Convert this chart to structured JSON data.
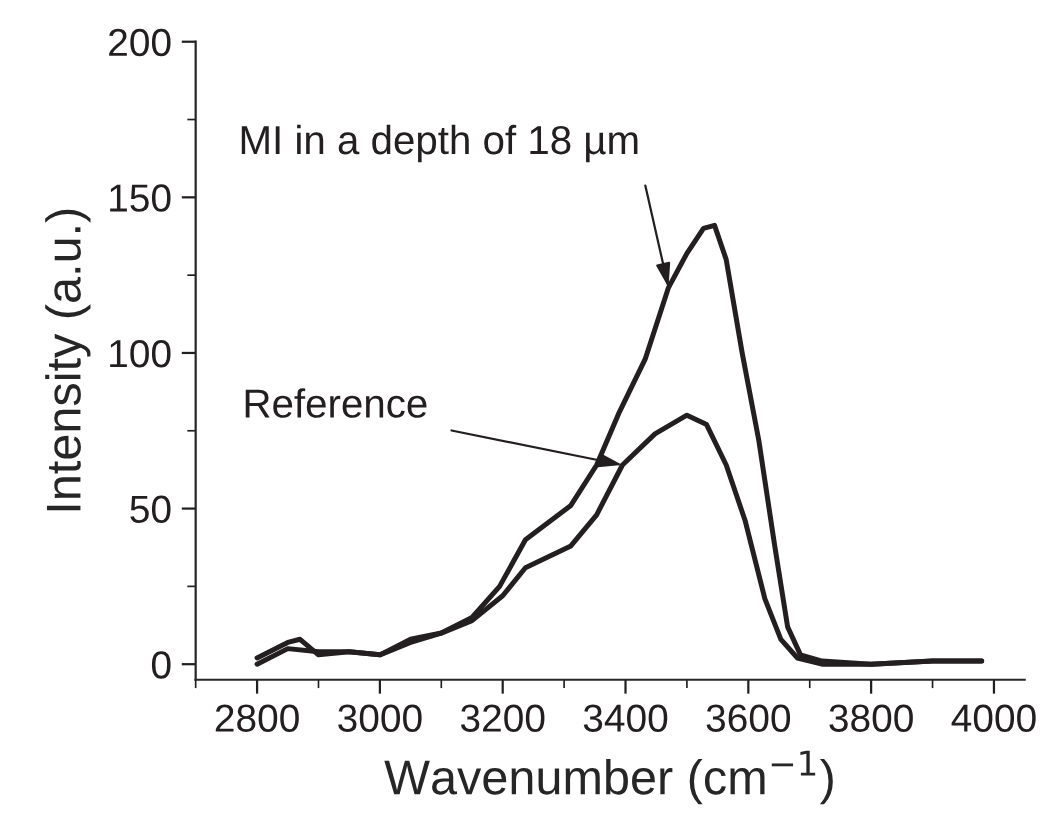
{
  "chart_data": {
    "type": "line",
    "xlabel": "Wavenumber (cm$^{−1}$)",
    "ylabel": "Intensity (a.u.)",
    "xlim": [
      2700,
      4050
    ],
    "ylim": [
      -5,
      200
    ],
    "xticks": [
      2800,
      3000,
      3200,
      3400,
      3600,
      3800,
      4000
    ],
    "yticks": [
      0,
      50,
      100,
      150,
      200
    ],
    "grid": false,
    "legend": false,
    "marker": "none",
    "line_style": "solid",
    "series": [
      {
        "color": "#231f20",
        "x": [
          2800,
          2850,
          2900,
          2950,
          3000,
          3050,
          3100,
          3150,
          3195,
          3237,
          3311,
          3353,
          3390,
          3432,
          3470,
          3500,
          3527,
          3545,
          3564,
          3590,
          3617,
          3643,
          3664,
          3685,
          3720,
          3800,
          3900,
          3980
        ],
        "values": [
          0,
          5,
          4,
          4,
          3,
          7,
          10,
          15,
          25,
          40,
          51,
          64,
          81,
          98,
          121,
          132,
          140,
          141,
          130,
          100,
          72,
          38,
          12,
          3,
          1,
          0,
          1,
          1
        ]
      },
      {
        "color": "#231f20",
        "x": [
          2800,
          2850,
          2870,
          2900,
          2950,
          3000,
          3050,
          3100,
          3150,
          3200,
          3237,
          3311,
          3353,
          3395,
          3448,
          3500,
          3532,
          3564,
          3595,
          3627,
          3653,
          3680,
          3720,
          3800,
          3900,
          3980
        ],
        "values": [
          2,
          7,
          8,
          3,
          4,
          3,
          8,
          10,
          14,
          22,
          31,
          38,
          48,
          64,
          74,
          80,
          77,
          64,
          46,
          21,
          8,
          2,
          0,
          0,
          1,
          1
        ]
      }
    ],
    "annotations": [
      {
        "text": "MI in a depth of 18 µm",
        "x": 3470,
        "y": 121
      },
      {
        "text": "Reference",
        "x": 3395,
        "y": 64
      }
    ]
  }
}
